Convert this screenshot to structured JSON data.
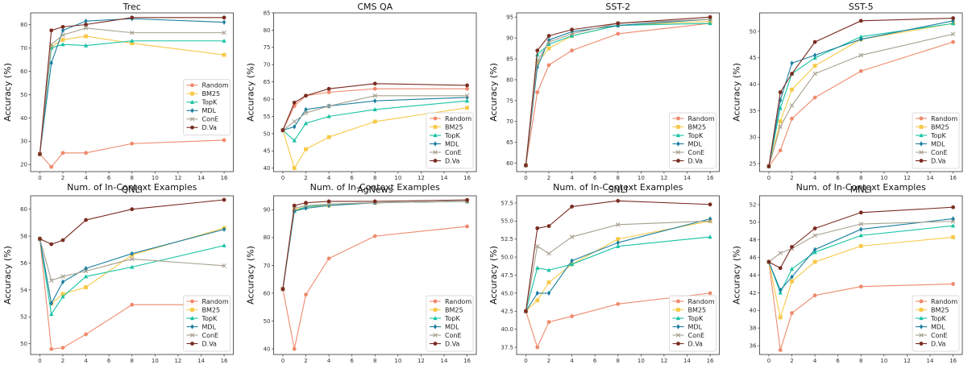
{
  "figure": {
    "x_label": "Num. of In-Context Examples",
    "y_label": "Accuracy (%)"
  },
  "colors": {
    "Random": "#ee8a6c",
    "BM25": "#f7c948",
    "TopK": "#17c3a4",
    "MDL": "#1b7fa0",
    "ConE": "#a6a08f",
    "D.Va": "#7a2c22"
  },
  "markers": {
    "Random": "circle",
    "BM25": "square",
    "TopK": "triangle",
    "MDL": "diamond",
    "ConE": "x",
    "D.Va": "circle"
  },
  "chart_data": [
    {
      "type": "line",
      "title": "Trec",
      "legend": "center-right",
      "x": [
        0,
        1,
        2,
        4,
        8,
        16
      ],
      "xticks": [
        0,
        2,
        4,
        6,
        8,
        10,
        12,
        14,
        16
      ],
      "ylim": [
        17,
        85
      ],
      "yticks": [
        20,
        30,
        40,
        50,
        60,
        70,
        80
      ],
      "series": [
        {
          "name": "Random",
          "values": [
            24.5,
            19.0,
            25.0,
            25.0,
            29.0,
            30.5
          ]
        },
        {
          "name": "BM25",
          "values": [
            24.5,
            70.5,
            73.5,
            75.0,
            72.0,
            67.0
          ]
        },
        {
          "name": "TopK",
          "values": [
            24.5,
            70.0,
            71.5,
            71.0,
            73.0,
            73.0
          ]
        },
        {
          "name": "MDL",
          "values": [
            24.5,
            63.5,
            77.5,
            81.5,
            82.5,
            81.0
          ]
        },
        {
          "name": "ConE",
          "values": [
            24.5,
            71.5,
            75.5,
            78.5,
            76.5,
            76.5
          ]
        },
        {
          "name": "D.Va",
          "values": [
            24.5,
            77.5,
            79.0,
            80.0,
            83.0,
            83.0
          ]
        }
      ]
    },
    {
      "type": "line",
      "title": "CMS QA",
      "legend": "lower-right",
      "x": [
        0,
        1,
        2,
        4,
        8,
        16
      ],
      "xticks": [
        0,
        2,
        4,
        6,
        8,
        10,
        12,
        14,
        16
      ],
      "ylim": [
        39,
        85
      ],
      "yticks": [
        40,
        45,
        50,
        55,
        60,
        65,
        70,
        75,
        80,
        85
      ],
      "series": [
        {
          "name": "Random",
          "values": [
            51.0,
            58.0,
            61.0,
            62.0,
            63.0,
            63.0
          ]
        },
        {
          "name": "BM25",
          "values": [
            51.0,
            40.0,
            45.5,
            49.0,
            53.5,
            57.5
          ]
        },
        {
          "name": "TopK",
          "values": [
            51.0,
            48.0,
            53.0,
            55.0,
            57.0,
            59.5
          ]
        },
        {
          "name": "MDL",
          "values": [
            51.0,
            52.0,
            57.0,
            58.0,
            59.5,
            60.5
          ]
        },
        {
          "name": "ConE",
          "values": [
            51.0,
            53.5,
            56.0,
            58.0,
            61.0,
            61.0
          ]
        },
        {
          "name": "D.Va",
          "values": [
            51.0,
            59.0,
            61.0,
            63.0,
            64.5,
            64.0
          ]
        }
      ]
    },
    {
      "type": "line",
      "title": "SST-2",
      "legend": "lower-right",
      "x": [
        0,
        1,
        2,
        4,
        8,
        16
      ],
      "xticks": [
        0,
        2,
        4,
        6,
        8,
        10,
        12,
        14,
        16
      ],
      "ylim": [
        58,
        96
      ],
      "yticks": [
        60,
        65,
        70,
        75,
        80,
        85,
        90,
        95
      ],
      "series": [
        {
          "name": "Random",
          "values": [
            59.5,
            77.0,
            83.5,
            87.0,
            91.0,
            93.5
          ]
        },
        {
          "name": "BM25",
          "values": [
            59.5,
            84.0,
            87.5,
            90.5,
            93.0,
            94.0
          ]
        },
        {
          "name": "TopK",
          "values": [
            59.5,
            86.0,
            88.5,
            90.5,
            93.0,
            93.5
          ]
        },
        {
          "name": "MDL",
          "values": [
            59.5,
            83.0,
            89.5,
            91.5,
            93.0,
            94.5
          ]
        },
        {
          "name": "ConE",
          "values": [
            59.5,
            84.5,
            89.0,
            91.0,
            93.5,
            94.5
          ]
        },
        {
          "name": "D.Va",
          "values": [
            59.5,
            87.0,
            90.5,
            92.0,
            93.5,
            95.0
          ]
        }
      ]
    },
    {
      "type": "line",
      "title": "SST-5",
      "legend": "lower-right",
      "x": [
        0,
        1,
        2,
        4,
        8,
        16
      ],
      "xticks": [
        0,
        2,
        4,
        6,
        8,
        10,
        12,
        14,
        16
      ],
      "ylim": [
        23.5,
        53.5
      ],
      "yticks": [
        25,
        30,
        35,
        40,
        45,
        50
      ],
      "series": [
        {
          "name": "Random",
          "values": [
            24.5,
            27.5,
            33.5,
            37.5,
            42.5,
            48.0
          ]
        },
        {
          "name": "BM25",
          "values": [
            24.5,
            33.0,
            39.0,
            43.5,
            48.5,
            51.5
          ]
        },
        {
          "name": "TopK",
          "values": [
            24.5,
            35.5,
            42.0,
            45.0,
            49.0,
            51.5
          ]
        },
        {
          "name": "MDL",
          "values": [
            24.5,
            37.0,
            44.0,
            45.5,
            48.5,
            52.0
          ]
        },
        {
          "name": "ConE",
          "values": [
            24.5,
            32.0,
            36.0,
            42.0,
            45.5,
            49.5
          ]
        },
        {
          "name": "D.Va",
          "values": [
            24.5,
            38.5,
            42.0,
            48.0,
            52.0,
            52.5
          ]
        }
      ]
    },
    {
      "type": "line",
      "title": "QNLI",
      "legend": "lower-right",
      "x": [
        0,
        1,
        2,
        4,
        8,
        16
      ],
      "xticks": [
        0,
        2,
        4,
        6,
        8,
        10,
        12,
        14,
        16
      ],
      "ylim": [
        49.2,
        61.0
      ],
      "yticks": [
        50,
        52,
        54,
        56,
        58,
        60
      ],
      "series": [
        {
          "name": "Random",
          "values": [
            57.8,
            49.6,
            49.7,
            50.7,
            52.9,
            52.9
          ]
        },
        {
          "name": "BM25",
          "values": [
            57.8,
            53.0,
            53.7,
            54.2,
            56.6,
            58.6
          ]
        },
        {
          "name": "TopK",
          "values": [
            57.8,
            52.2,
            53.5,
            55.0,
            55.7,
            57.3
          ]
        },
        {
          "name": "MDL",
          "values": [
            57.8,
            53.0,
            54.6,
            55.6,
            56.7,
            58.5
          ]
        },
        {
          "name": "ConE",
          "values": [
            57.8,
            54.7,
            55.0,
            55.4,
            56.3,
            55.8
          ]
        },
        {
          "name": "D.Va",
          "values": [
            57.8,
            57.4,
            57.7,
            59.2,
            60.0,
            60.7
          ]
        }
      ]
    },
    {
      "type": "line",
      "title": "AgNews",
      "legend": "lower-right",
      "x": [
        0,
        1,
        2,
        4,
        8,
        16
      ],
      "xticks": [
        0,
        2,
        4,
        6,
        8,
        10,
        12,
        14,
        16
      ],
      "ylim": [
        38,
        95
      ],
      "yticks": [
        40,
        50,
        60,
        70,
        80,
        90
      ],
      "series": [
        {
          "name": "Random",
          "values": [
            61.5,
            40.0,
            59.5,
            72.5,
            80.5,
            84.0
          ]
        },
        {
          "name": "BM25",
          "values": [
            61.5,
            90.0,
            91.0,
            91.5,
            92.5,
            93.0
          ]
        },
        {
          "name": "TopK",
          "values": [
            61.5,
            89.5,
            91.0,
            92.0,
            92.5,
            93.0
          ]
        },
        {
          "name": "MDL",
          "values": [
            61.5,
            89.5,
            90.5,
            91.5,
            92.5,
            93.0
          ]
        },
        {
          "name": "ConE",
          "values": [
            61.5,
            90.5,
            91.5,
            92.0,
            92.5,
            93.0
          ]
        },
        {
          "name": "D.Va",
          "values": [
            61.5,
            91.5,
            92.5,
            93.0,
            93.0,
            93.5
          ]
        }
      ]
    },
    {
      "type": "line",
      "title": "SNLI",
      "legend": "lower-right",
      "x": [
        0,
        1,
        2,
        4,
        8,
        16
      ],
      "xticks": [
        0,
        2,
        4,
        6,
        8,
        10,
        12,
        14,
        16
      ],
      "ylim": [
        36.5,
        58.5
      ],
      "yticks": [
        37.5,
        40.0,
        42.5,
        45.0,
        47.5,
        50.0,
        52.5,
        55.0,
        57.5
      ],
      "ytick_labels": [
        "37.5",
        "40.0",
        "42.5",
        "45.0",
        "47.5",
        "50.0",
        "52.5",
        "55.0",
        "57.5"
      ],
      "series": [
        {
          "name": "Random",
          "values": [
            42.5,
            37.5,
            41.0,
            41.8,
            43.5,
            45.0
          ]
        },
        {
          "name": "BM25",
          "values": [
            42.5,
            44.0,
            46.5,
            49.0,
            52.5,
            55.0
          ]
        },
        {
          "name": "TopK",
          "values": [
            42.5,
            48.5,
            48.2,
            49.0,
            51.5,
            52.8
          ]
        },
        {
          "name": "MDL",
          "values": [
            42.5,
            45.0,
            45.0,
            49.5,
            52.0,
            55.3
          ]
        },
        {
          "name": "ConE",
          "values": [
            42.5,
            51.5,
            50.5,
            52.8,
            54.5,
            55.0
          ]
        },
        {
          "name": "D.Va",
          "values": [
            42.5,
            54.0,
            54.3,
            57.0,
            57.8,
            57.3
          ]
        }
      ]
    },
    {
      "type": "line",
      "title": "MNLI",
      "legend": "lower-right",
      "x": [
        0,
        1,
        2,
        4,
        8,
        16
      ],
      "xticks": [
        0,
        2,
        4,
        6,
        8,
        10,
        12,
        14,
        16
      ],
      "ylim": [
        35.0,
        53.0
      ],
      "yticks": [
        36,
        38,
        40,
        42,
        44,
        46,
        48,
        50,
        52
      ],
      "series": [
        {
          "name": "Random",
          "values": [
            45.5,
            35.5,
            39.7,
            41.7,
            42.7,
            43.0
          ]
        },
        {
          "name": "BM25",
          "values": [
            45.5,
            39.2,
            43.3,
            45.5,
            47.3,
            48.3
          ]
        },
        {
          "name": "TopK",
          "values": [
            45.5,
            42.0,
            44.7,
            46.6,
            48.5,
            49.6
          ]
        },
        {
          "name": "MDL",
          "values": [
            45.5,
            42.3,
            43.8,
            46.9,
            49.2,
            50.4
          ]
        },
        {
          "name": "ConE",
          "values": [
            45.5,
            46.5,
            47.0,
            48.5,
            49.8,
            50.1
          ]
        },
        {
          "name": "D.Va",
          "values": [
            45.5,
            44.8,
            47.2,
            49.3,
            51.1,
            51.7
          ]
        }
      ]
    }
  ]
}
